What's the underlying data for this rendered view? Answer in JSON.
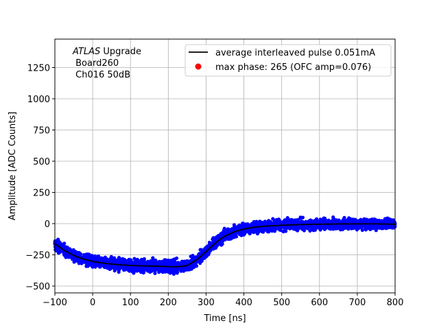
{
  "chart_data": {
    "type": "scatter",
    "xlabel": "Time [ns]",
    "ylabel": "Amplitude [ADC Counts]",
    "xlim": [
      -100,
      800
    ],
    "ylim": [
      -555,
      1478
    ],
    "grid": true,
    "xticks": [
      -100,
      0,
      100,
      200,
      300,
      400,
      500,
      600,
      700,
      800
    ],
    "yticks": [
      -500,
      -250,
      0,
      250,
      500,
      750,
      1000,
      1250
    ],
    "annotation": {
      "italic": "ATLAS",
      "rest": " Upgrade",
      "line2": " Board260",
      "line3": " Ch016 50dB"
    },
    "legend": {
      "placement": "top-right",
      "entries": [
        {
          "label": "average interleaved pulse 0.051mA",
          "color": "#000000",
          "marker": "line"
        },
        {
          "label": "max phase: 265 (OFC amp=0.076)",
          "color": "#ff0000",
          "marker": "dot"
        }
      ]
    },
    "series": [
      {
        "name": "average interleaved pulse 0.051mA",
        "kind": "line",
        "color": "#000000",
        "x": [
          -100,
          -75,
          -50,
          -25,
          0,
          25,
          50,
          75,
          100,
          125,
          150,
          175,
          200,
          225,
          240,
          250,
          262,
          275,
          287,
          300,
          312,
          325,
          337,
          350,
          375,
          400,
          425,
          450,
          500,
          550,
          600,
          650,
          700,
          750,
          800
        ],
        "y": [
          -160,
          -215,
          -255,
          -283,
          -303,
          -315,
          -324,
          -330,
          -335,
          -338,
          -340,
          -342,
          -344,
          -345,
          -342,
          -335,
          -315,
          -290,
          -260,
          -225,
          -190,
          -155,
          -125,
          -100,
          -65,
          -43,
          -30,
          -22,
          -13,
          -8,
          -5,
          -3,
          -2,
          -2,
          -5
        ]
      },
      {
        "name": "samples",
        "kind": "scatter",
        "color": "#0000ff",
        "noise_spread": 45
      }
    ]
  }
}
